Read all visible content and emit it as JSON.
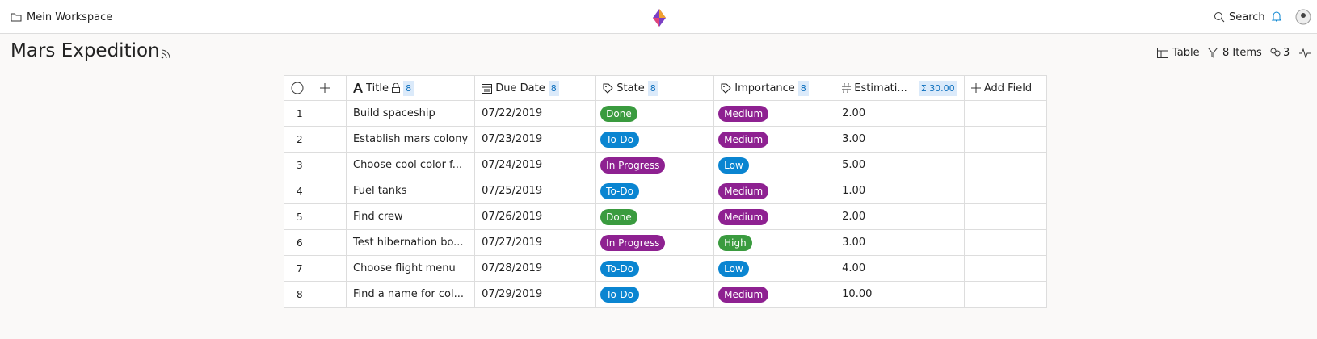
{
  "header": {
    "workspace": "Mein Workspace",
    "search": "Search"
  },
  "page": {
    "title": "Mars Expedition",
    "view": "Table",
    "items": "8 Items",
    "members": "3"
  },
  "table": {
    "columns": [
      {
        "label": "Title",
        "count": 8
      },
      {
        "label": "Due Date",
        "count": 8
      },
      {
        "label": "State",
        "count": 8
      },
      {
        "label": "Importance",
        "count": 8
      },
      {
        "label": "Estimati...",
        "sum_symbol": "Σ",
        "sum": "30.00"
      }
    ],
    "add_field": "Add Field",
    "rows": [
      {
        "index": 1,
        "title": "Build spaceship",
        "due": "07/22/2019",
        "state": {
          "label": "Done",
          "color": "#3a9b3f"
        },
        "importance": {
          "label": "Medium",
          "color": "#8e2191"
        },
        "estimate": "2.00"
      },
      {
        "index": 2,
        "title": "Establish mars colony",
        "due": "07/23/2019",
        "state": {
          "label": "To-Do",
          "color": "#0a85d1"
        },
        "importance": {
          "label": "Medium",
          "color": "#8e2191"
        },
        "estimate": "3.00"
      },
      {
        "index": 3,
        "title": "Choose cool color f...",
        "due": "07/24/2019",
        "state": {
          "label": "In Progress",
          "color": "#8e2191"
        },
        "importance": {
          "label": "Low",
          "color": "#0a85d1"
        },
        "estimate": "5.00"
      },
      {
        "index": 4,
        "title": "Fuel tanks",
        "due": "07/25/2019",
        "state": {
          "label": "To-Do",
          "color": "#0a85d1"
        },
        "importance": {
          "label": "Medium",
          "color": "#8e2191"
        },
        "estimate": "1.00"
      },
      {
        "index": 5,
        "title": "Find crew",
        "due": "07/26/2019",
        "state": {
          "label": "Done",
          "color": "#3a9b3f"
        },
        "importance": {
          "label": "Medium",
          "color": "#8e2191"
        },
        "estimate": "2.00"
      },
      {
        "index": 6,
        "title": "Test hibernation bo...",
        "due": "07/27/2019",
        "state": {
          "label": "In Progress",
          "color": "#8e2191"
        },
        "importance": {
          "label": "High",
          "color": "#3a9b3f"
        },
        "estimate": "3.00"
      },
      {
        "index": 7,
        "title": "Choose flight menu",
        "due": "07/28/2019",
        "state": {
          "label": "To-Do",
          "color": "#0a85d1"
        },
        "importance": {
          "label": "Low",
          "color": "#0a85d1"
        },
        "estimate": "4.00"
      },
      {
        "index": 8,
        "title": "Find a name for col...",
        "due": "07/29/2019",
        "state": {
          "label": "To-Do",
          "color": "#0a85d1"
        },
        "importance": {
          "label": "Medium",
          "color": "#8e2191"
        },
        "estimate": "10.00"
      }
    ]
  }
}
